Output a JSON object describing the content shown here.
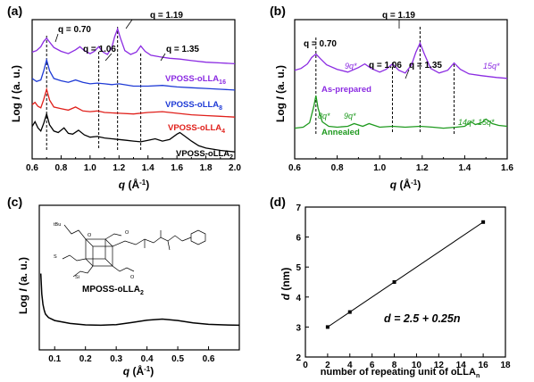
{
  "chart_data": [
    {
      "type": "line",
      "panel_label": "(a)",
      "xlabel": "q (Å⁻¹)",
      "ylabel": "Log I (a. u.)",
      "xlim": [
        0.6,
        2.0
      ],
      "xticks": [
        "0.6",
        "0.8",
        "1.0",
        "1.2",
        "1.4",
        "1.6",
        "1.8",
        "2.0"
      ],
      "y_ticks_shown": false,
      "peak_markers": [
        {
          "q": 0.7,
          "label": "q = 0.70"
        },
        {
          "q": 1.06,
          "label": "q = 1.06"
        },
        {
          "q": 1.19,
          "label": "q = 1.19"
        },
        {
          "q": 1.35,
          "label": "q = 1.35"
        }
      ],
      "series": [
        {
          "name": "VPOSS-oLLA16",
          "label_main": "VPOSS-oLLA",
          "label_sub": "16",
          "color": "#8b2be2",
          "x": [
            0.6,
            0.63,
            0.66,
            0.68,
            0.7,
            0.72,
            0.75,
            0.8,
            0.85,
            0.9,
            0.93,
            0.96,
            1.0,
            1.03,
            1.06,
            1.09,
            1.12,
            1.15,
            1.17,
            1.19,
            1.21,
            1.24,
            1.28,
            1.32,
            1.35,
            1.38,
            1.42,
            1.48,
            1.55,
            1.62,
            1.7,
            1.8,
            1.9,
            2.0
          ],
          "y": [
            8.4,
            8.5,
            8.75,
            9.1,
            9.3,
            9.05,
            8.7,
            8.45,
            8.3,
            8.55,
            8.75,
            8.5,
            8.3,
            8.45,
            8.75,
            8.4,
            8.25,
            8.7,
            9.4,
            9.9,
            9.3,
            8.5,
            8.25,
            8.4,
            8.8,
            8.45,
            8.2,
            8.1,
            8.0,
            7.95,
            7.85,
            7.75,
            7.7,
            7.65
          ]
        },
        {
          "name": "VPOSS-oLLA8",
          "label_main": "VPOSS-oLLA",
          "label_sub": "8",
          "color": "#1f3bd6",
          "x": [
            0.6,
            0.63,
            0.66,
            0.68,
            0.7,
            0.72,
            0.75,
            0.8,
            0.85,
            0.9,
            0.95,
            1.0,
            1.05,
            1.1,
            1.15,
            1.2,
            1.3,
            1.4,
            1.5,
            1.6,
            1.7,
            1.8,
            1.9,
            2.0
          ],
          "y": [
            6.7,
            6.5,
            6.6,
            7.2,
            7.9,
            7.2,
            6.7,
            6.55,
            6.45,
            6.6,
            6.45,
            6.35,
            6.4,
            6.35,
            6.3,
            6.35,
            6.2,
            6.2,
            6.25,
            6.15,
            6.1,
            6.05,
            6.0,
            5.95
          ]
        },
        {
          "name": "VPOSS-oLLA4",
          "label_main": "VPOSS-oLLA",
          "label_sub": "4",
          "color": "#e0201b",
          "x": [
            0.6,
            0.62,
            0.64,
            0.66,
            0.68,
            0.7,
            0.72,
            0.75,
            0.8,
            0.85,
            0.9,
            0.95,
            1.0,
            1.05,
            1.1,
            1.2,
            1.3,
            1.4,
            1.5,
            1.6,
            1.7,
            1.8,
            1.9,
            2.0
          ],
          "y": [
            5.0,
            5.15,
            4.9,
            4.8,
            5.35,
            6.0,
            5.3,
            4.85,
            4.75,
            4.65,
            4.85,
            4.6,
            4.55,
            4.6,
            4.5,
            4.45,
            4.4,
            4.5,
            4.55,
            4.45,
            4.35,
            4.3,
            4.25,
            4.2
          ]
        },
        {
          "name": "VPOSS-oLLA2",
          "label_main": "VPOSS-oLLA",
          "label_sub": "2",
          "color": "#000000",
          "x": [
            0.6,
            0.62,
            0.64,
            0.66,
            0.68,
            0.7,
            0.72,
            0.75,
            0.78,
            0.82,
            0.85,
            0.88,
            0.92,
            0.96,
            1.0,
            1.05,
            1.1,
            1.15,
            1.2,
            1.25,
            1.3,
            1.35,
            1.4,
            1.45,
            1.5,
            1.55,
            1.6,
            1.62,
            1.65,
            1.7,
            1.75,
            1.8,
            1.9,
            2.0
          ],
          "y": [
            3.6,
            3.9,
            3.5,
            3.3,
            3.8,
            4.4,
            3.7,
            3.3,
            3.2,
            3.5,
            3.15,
            3.1,
            3.35,
            3.05,
            2.9,
            2.95,
            2.85,
            2.8,
            2.75,
            2.7,
            2.65,
            2.6,
            2.7,
            2.8,
            2.65,
            2.75,
            3.1,
            3.2,
            3.0,
            2.65,
            2.35,
            2.2,
            2.05,
            1.95
          ]
        }
      ]
    },
    {
      "type": "line",
      "panel_label": "(b)",
      "xlabel": "q (Å⁻¹)",
      "ylabel": "Log I (a. u.)",
      "xlim": [
        0.6,
        1.6
      ],
      "xticks": [
        "0.6",
        "0.8",
        "1.0",
        "1.2",
        "1.4",
        "1.6"
      ],
      "y_ticks_shown": false,
      "peak_markers": [
        {
          "q": 0.7,
          "label": "q = 0.70"
        },
        {
          "q": 1.06,
          "label": "q = 1.06"
        },
        {
          "q": 1.19,
          "label": "q = 1.19"
        },
        {
          "q": 1.35,
          "label": "q = 1.35"
        }
      ],
      "series": [
        {
          "name": "As-prepared",
          "color": "#8b2be2",
          "x": [
            0.6,
            0.63,
            0.66,
            0.68,
            0.7,
            0.72,
            0.75,
            0.8,
            0.85,
            0.9,
            0.93,
            0.96,
            1.0,
            1.03,
            1.06,
            1.09,
            1.12,
            1.15,
            1.17,
            1.19,
            1.21,
            1.24,
            1.28,
            1.32,
            1.35,
            1.38,
            1.42,
            1.48,
            1.55,
            1.6
          ],
          "y": [
            8.4,
            8.5,
            8.75,
            9.1,
            9.3,
            9.05,
            8.7,
            8.45,
            8.3,
            8.55,
            8.75,
            8.5,
            8.3,
            8.45,
            8.75,
            8.4,
            8.25,
            8.7,
            9.4,
            9.9,
            9.3,
            8.5,
            8.25,
            8.4,
            8.8,
            8.45,
            8.2,
            8.1,
            8.0,
            7.95
          ]
        },
        {
          "name": "Annealed",
          "color": "#1f9a1f",
          "x": [
            0.6,
            0.64,
            0.67,
            0.69,
            0.7,
            0.71,
            0.73,
            0.76,
            0.8,
            0.85,
            0.88,
            0.92,
            0.95,
            1.0,
            1.06,
            1.12,
            1.19,
            1.25,
            1.3,
            1.36,
            1.4,
            1.43,
            1.45,
            1.48,
            1.5,
            1.53,
            1.56,
            1.6
          ],
          "y": [
            5.2,
            5.25,
            5.5,
            6.4,
            7.0,
            6.3,
            5.55,
            5.3,
            5.25,
            5.3,
            5.45,
            5.3,
            5.45,
            5.25,
            5.3,
            5.25,
            5.3,
            5.25,
            5.2,
            5.25,
            5.3,
            5.55,
            5.4,
            5.5,
            5.7,
            5.45,
            5.35,
            5.3
          ]
        }
      ],
      "annotations": {
        "as_prepared": [
          {
            "text": "9q*",
            "q": 0.93
          },
          {
            "text": "15q*",
            "q": 1.53
          }
        ],
        "annealed": [
          {
            "text": "8q*",
            "q": 0.84
          },
          {
            "text": "9q*",
            "q": 0.93
          },
          {
            "text": "14q*",
            "q": 1.45
          },
          {
            "text": "15q*",
            "q": 1.51
          }
        ]
      }
    },
    {
      "type": "line",
      "panel_label": "(c)",
      "xlabel": "q (Å⁻¹)",
      "ylabel": "Log I (a. u.)",
      "xlim": [
        0.05,
        0.7
      ],
      "xticks": [
        "0.1",
        "0.2",
        "0.3",
        "0.4",
        "0.5",
        "0.6"
      ],
      "y_ticks_shown": false,
      "compound_label": "MPOSS-oLLA",
      "compound_sub": "2",
      "structure_labels": [
        "tBu",
        "S",
        "Si",
        "O",
        "O",
        "O"
      ],
      "series": [
        {
          "name": "MPOSS-oLLA2",
          "color": "#000000",
          "x": [
            0.055,
            0.058,
            0.062,
            0.066,
            0.07,
            0.08,
            0.1,
            0.15,
            0.2,
            0.25,
            0.3,
            0.35,
            0.4,
            0.45,
            0.5,
            0.55,
            0.6,
            0.65,
            0.7
          ],
          "y": [
            2.0,
            1.3,
            0.95,
            0.75,
            0.62,
            0.5,
            0.4,
            0.3,
            0.25,
            0.24,
            0.26,
            0.33,
            0.41,
            0.45,
            0.4,
            0.32,
            0.27,
            0.25,
            0.24
          ]
        }
      ]
    },
    {
      "type": "scatter",
      "panel_label": "(d)",
      "xlabel": "number of repeating unit of oLLA",
      "xlabel_sub": "n",
      "ylabel": "d (nm)",
      "xlim": [
        0,
        18
      ],
      "ylim": [
        2,
        7
      ],
      "xticks": [
        "0",
        "2",
        "4",
        "6",
        "8",
        "10",
        "12",
        "14",
        "16",
        "18"
      ],
      "yticks": [
        "2",
        "3",
        "4",
        "5",
        "6",
        "7"
      ],
      "equation": "d = 2.5 + 0.25n",
      "series": [
        {
          "name": "d",
          "color": "#000000",
          "x": [
            2,
            4,
            8,
            16
          ],
          "y": [
            3.0,
            3.5,
            4.5,
            6.5
          ]
        }
      ],
      "fit": {
        "x": [
          2,
          16
        ],
        "y": [
          3.0,
          6.5
        ]
      }
    }
  ]
}
